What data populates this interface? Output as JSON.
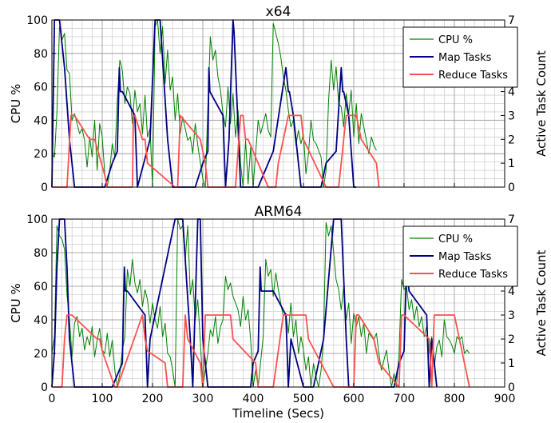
{
  "chart_data": [
    {
      "type": "line",
      "title": "x64",
      "xlabel": "",
      "ylabel": "CPU %",
      "y2label": "Active Task Count",
      "xlim": [
        0,
        900
      ],
      "ylim": [
        0,
        100
      ],
      "y2lim": [
        0,
        7
      ],
      "grid": true,
      "legend_position": "top-right",
      "yticks": [
        "0",
        "20",
        "40",
        "60",
        "80",
        "100"
      ],
      "y2ticks": [
        "0",
        "1",
        "2",
        "3",
        "4",
        "5",
        "6",
        "7"
      ],
      "series": [
        {
          "name": "CPU %",
          "color": "#008000",
          "axis": "left",
          "x": [
            0,
            5,
            10,
            15,
            20,
            25,
            30,
            35,
            40,
            45,
            50,
            55,
            60,
            65,
            70,
            75,
            80,
            85,
            90,
            95,
            100,
            105,
            110,
            115,
            120,
            125,
            130,
            135,
            140,
            145,
            150,
            155,
            160,
            165,
            170,
            175,
            180,
            185,
            190,
            195,
            200,
            205,
            210,
            215,
            220,
            225,
            230,
            235,
            240,
            245,
            250,
            255,
            260,
            265,
            270,
            275,
            280,
            285,
            290,
            295,
            300,
            305,
            310,
            315,
            320,
            325,
            330,
            335,
            340,
            345,
            350,
            355,
            360,
            365,
            370,
            375,
            380,
            385,
            390,
            395,
            400,
            405,
            410,
            415,
            420,
            425,
            430,
            435,
            440,
            445,
            450,
            455,
            460,
            465,
            470,
            475,
            480,
            485,
            490,
            495,
            500,
            505,
            510,
            515,
            520,
            525,
            530,
            535,
            540,
            545,
            550,
            555,
            560,
            565,
            570,
            575,
            580,
            585,
            590,
            595,
            600,
            605,
            610,
            615,
            620,
            625,
            630,
            635,
            640,
            645
          ],
          "y": [
            20,
            18,
            45,
            96,
            88,
            92,
            70,
            68,
            40,
            44,
            38,
            32,
            35,
            28,
            12,
            30,
            18,
            40,
            10,
            38,
            30,
            8,
            0,
            10,
            26,
            18,
            52,
            76,
            70,
            50,
            60,
            56,
            38,
            58,
            45,
            50,
            32,
            55,
            30,
            35,
            0,
            96,
            100,
            80,
            96,
            62,
            82,
            58,
            66,
            40,
            56,
            32,
            42,
            35,
            28,
            30,
            20,
            38,
            25,
            15,
            5,
            0,
            48,
            90,
            76,
            82,
            66,
            58,
            44,
            36,
            60,
            38,
            56,
            30,
            46,
            14,
            0,
            28,
            2,
            24,
            0,
            20,
            40,
            32,
            38,
            44,
            34,
            30,
            98,
            92,
            86,
            78,
            66,
            58,
            46,
            36,
            40,
            25,
            34,
            26,
            32,
            8,
            20,
            40,
            28,
            26,
            22,
            18,
            0,
            10,
            52,
            76,
            58,
            72,
            50,
            48,
            36,
            56,
            44,
            58,
            30,
            50,
            26,
            44,
            36,
            28,
            20,
            30,
            25,
            22
          ]
        },
        {
          "name": "Map Tasks",
          "color": "#000080",
          "axis": "right",
          "x": [
            0,
            5,
            15,
            25,
            35,
            45,
            50,
            105,
            120,
            130,
            134,
            136,
            140,
            165,
            170,
            195,
            205,
            215,
            230,
            240,
            285,
            300,
            310,
            312,
            314,
            340,
            345,
            352,
            360,
            362,
            375,
            410,
            430,
            440,
            465,
            470,
            472,
            480,
            495,
            535,
            545,
            565,
            575,
            578,
            580,
            590,
            600,
            605
          ],
          "y": [
            0,
            7,
            7,
            5,
            2,
            0,
            0,
            0,
            1,
            1.5,
            5,
            4,
            4,
            3,
            0,
            2,
            7,
            7,
            2,
            0,
            0,
            1,
            1.5,
            5,
            4,
            3,
            0,
            2,
            7,
            6.5,
            0,
            0,
            1,
            1.5,
            5,
            4,
            4,
            3,
            0,
            0,
            1,
            1.5,
            5,
            4,
            4,
            3,
            0,
            0
          ],
          "y2": []
        },
        {
          "name": "Reduce Tasks",
          "color": "#ff5050",
          "axis": "right",
          "x": [
            0,
            30,
            38,
            45,
            75,
            80,
            85,
            105,
            110,
            160,
            162,
            165,
            180,
            185,
            190,
            245,
            250,
            255,
            295,
            305,
            310,
            365,
            375,
            380,
            385,
            390,
            430,
            445,
            450,
            460,
            470,
            490,
            495,
            500,
            545,
            570,
            575,
            580,
            585,
            600,
            605,
            615,
            645,
            650
          ],
          "y": [
            0,
            0,
            3,
            3,
            2,
            2,
            2,
            0.5,
            0,
            0,
            3,
            3,
            2,
            2,
            1,
            0,
            0,
            3,
            2,
            1,
            0,
            0,
            3,
            3,
            2,
            2,
            0,
            0,
            1,
            2,
            3,
            3,
            3,
            2,
            0,
            0,
            1,
            2,
            3,
            3,
            3,
            2,
            1,
            0
          ]
        }
      ]
    },
    {
      "type": "line",
      "title": "ARM64",
      "xlabel": "Timeline (Secs)",
      "ylabel": "CPU %",
      "y2label": "Active Task Count",
      "xlim": [
        0,
        900
      ],
      "ylim": [
        0,
        100
      ],
      "y2lim": [
        0,
        7
      ],
      "grid": true,
      "legend_position": "top-right",
      "xticks": [
        "0",
        "100",
        "200",
        "300",
        "400",
        "500",
        "600",
        "700",
        "800",
        "900"
      ],
      "yticks": [
        "0",
        "20",
        "40",
        "60",
        "80",
        "100"
      ],
      "y2ticks": [
        "0",
        "1",
        "2",
        "3",
        "4",
        "5",
        "6",
        "7"
      ],
      "series": [
        {
          "name": "CPU %",
          "color": "#008000",
          "axis": "left",
          "x": [
            0,
            5,
            10,
            15,
            20,
            25,
            30,
            35,
            40,
            45,
            50,
            55,
            60,
            65,
            70,
            75,
            80,
            85,
            90,
            95,
            100,
            105,
            110,
            115,
            120,
            125,
            130,
            135,
            140,
            145,
            150,
            155,
            160,
            165,
            170,
            175,
            180,
            185,
            190,
            195,
            200,
            205,
            210,
            215,
            220,
            225,
            230,
            235,
            240,
            245,
            250,
            255,
            260,
            265,
            270,
            275,
            280,
            285,
            290,
            295,
            300,
            305,
            310,
            315,
            320,
            325,
            330,
            335,
            340,
            345,
            350,
            355,
            360,
            365,
            370,
            375,
            380,
            385,
            390,
            395,
            400,
            405,
            410,
            415,
            420,
            425,
            430,
            435,
            440,
            445,
            450,
            455,
            460,
            465,
            470,
            475,
            480,
            485,
            490,
            495,
            500,
            505,
            510,
            515,
            520,
            525,
            530,
            535,
            540,
            545,
            550,
            555,
            560,
            565,
            570,
            575,
            580,
            585,
            590,
            595,
            600,
            605,
            610,
            615,
            620,
            625,
            630,
            635,
            640,
            645,
            650,
            655,
            660,
            665,
            670,
            675,
            680,
            685,
            690,
            695,
            700,
            705,
            710,
            715,
            720,
            725,
            730,
            735,
            740,
            745,
            750,
            755,
            760,
            765,
            770,
            775,
            780,
            785,
            790,
            795,
            800,
            805,
            810,
            815,
            820,
            825,
            830
          ],
          "y": [
            20,
            30,
            96,
            90,
            88,
            82,
            55,
            40,
            18,
            38,
            42,
            30,
            35,
            22,
            30,
            25,
            36,
            18,
            28,
            35,
            22,
            20,
            32,
            18,
            28,
            10,
            0,
            8,
            22,
            30,
            70,
            60,
            76,
            62,
            56,
            64,
            48,
            58,
            52,
            38,
            50,
            40,
            35,
            48,
            30,
            38,
            20,
            18,
            10,
            0,
            100,
            94,
            96,
            76,
            96,
            55,
            64,
            40,
            52,
            28,
            0,
            10,
            20,
            34,
            30,
            42,
            26,
            36,
            40,
            66,
            58,
            62,
            54,
            50,
            46,
            36,
            54,
            40,
            46,
            28,
            0,
            10,
            0,
            15,
            30,
            76,
            66,
            70,
            54,
            68,
            58,
            50,
            42,
            44,
            32,
            50,
            30,
            40,
            20,
            30,
            22,
            10,
            18,
            0,
            14,
            6,
            0,
            10,
            30,
            98,
            90,
            96,
            80,
            64,
            58,
            46,
            60,
            40,
            50,
            26,
            44,
            36,
            42,
            30,
            38,
            20,
            32,
            30,
            28,
            32,
            20,
            10,
            16,
            22,
            10,
            0,
            8,
            0,
            20,
            64,
            58,
            60,
            46,
            52,
            40,
            48,
            36,
            42,
            30,
            36,
            20,
            30,
            12,
            24,
            28,
            18,
            40,
            30,
            28,
            25,
            20,
            30,
            28,
            30,
            20,
            22,
            20
          ],
          "y2": []
        },
        {
          "name": "Map Tasks",
          "color": "#000080",
          "axis": "right",
          "x": [
            0,
            5,
            10,
            15,
            25,
            30,
            35,
            45,
            50,
            120,
            130,
            140,
            144,
            146,
            150,
            185,
            190,
            195,
            245,
            260,
            275,
            280,
            290,
            295,
            300,
            310,
            395,
            400,
            410,
            414,
            416,
            440,
            465,
            470,
            475,
            500,
            520,
            540,
            560,
            575,
            585,
            590,
            595,
            615,
            680,
            690,
            700,
            705,
            710,
            745,
            750,
            755,
            765
          ],
          "y": [
            0,
            1.5,
            5,
            7,
            7,
            5,
            2,
            0,
            0,
            0,
            0.5,
            1,
            5,
            4,
            4,
            3,
            0,
            2,
            7,
            7,
            2,
            0,
            7,
            7,
            2,
            0,
            0,
            1,
            1.5,
            5,
            4,
            4,
            3,
            0,
            2,
            0,
            0,
            2,
            7,
            7,
            2,
            0,
            0,
            0,
            0,
            1,
            1.5,
            5,
            4,
            3,
            0,
            2,
            0
          ],
          "y2": []
        },
        {
          "name": "Reduce Tasks",
          "color": "#ff5050",
          "axis": "right",
          "x": [
            0,
            20,
            25,
            30,
            40,
            90,
            95,
            100,
            125,
            130,
            180,
            185,
            190,
            225,
            230,
            260,
            265,
            270,
            295,
            300,
            305,
            350,
            355,
            360,
            405,
            410,
            440,
            460,
            465,
            470,
            505,
            510,
            560,
            600,
            605,
            610,
            640,
            645,
            650,
            690,
            695,
            700,
            750,
            755,
            760,
            800,
            810,
            830
          ],
          "y": [
            0,
            0,
            2,
            3,
            3,
            2,
            2,
            1.5,
            0,
            0,
            3,
            2,
            1.5,
            1,
            0,
            0,
            3,
            2,
            1,
            0,
            3,
            3,
            3,
            2,
            1,
            0,
            0,
            3,
            3,
            3,
            3,
            2,
            0,
            0,
            3,
            3,
            2,
            1.5,
            1,
            0,
            3,
            3,
            2,
            0,
            3,
            3,
            2,
            0
          ]
        }
      ]
    }
  ]
}
